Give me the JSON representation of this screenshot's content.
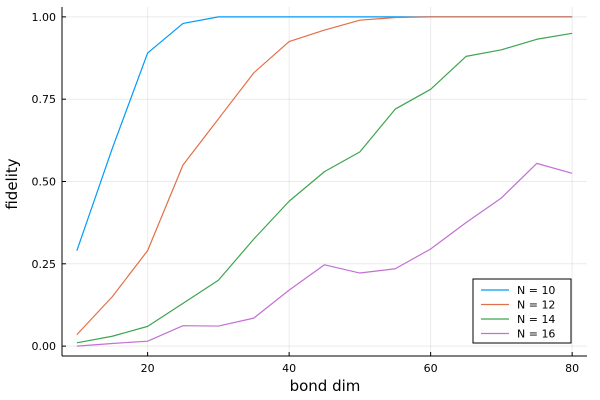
{
  "chart_data": {
    "type": "line",
    "xlabel": "bond dim",
    "ylabel": "fidelity",
    "xlim": [
      7.9,
      82.1
    ],
    "ylim": [
      -0.03,
      1.03
    ],
    "xticks": [
      20,
      40,
      60,
      80
    ],
    "xtick_labels": [
      "20",
      "40",
      "60",
      "80"
    ],
    "yticks": [
      0,
      0.25,
      0.5,
      0.75,
      1
    ],
    "ytick_labels": [
      "0.00",
      "0.25",
      "0.50",
      "0.75",
      "1.00"
    ],
    "grid": true,
    "legend_position": "bottom-right",
    "x": [
      10,
      15,
      20,
      25,
      30,
      35,
      40,
      45,
      50,
      55,
      60,
      65,
      70,
      75,
      80
    ],
    "series": [
      {
        "name": "N = 10",
        "color": "#009AFA",
        "values": [
          0.29,
          0.6,
          0.89,
          0.98,
          1.0,
          1.0,
          1.0,
          1.0,
          1.0,
          1.0,
          1.0,
          1.0,
          1.0,
          1.0,
          1.0
        ]
      },
      {
        "name": "N = 12",
        "color": "#E36F47",
        "values": [
          0.035,
          0.15,
          0.29,
          0.55,
          0.69,
          0.83,
          0.925,
          0.96,
          0.99,
          0.998,
          1.0,
          1.0,
          1.0,
          1.0,
          1.0
        ]
      },
      {
        "name": "N = 14",
        "color": "#3EA44E",
        "values": [
          0.01,
          0.03,
          0.06,
          0.13,
          0.2,
          0.325,
          0.44,
          0.53,
          0.59,
          0.72,
          0.78,
          0.88,
          0.9,
          0.932,
          0.95
        ]
      },
      {
        "name": "N = 16",
        "color": "#C271D2",
        "values": [
          0.0,
          0.008,
          0.015,
          0.062,
          0.061,
          0.085,
          0.17,
          0.247,
          0.222,
          0.235,
          0.295,
          0.375,
          0.45,
          0.555,
          0.525
        ]
      }
    ]
  }
}
